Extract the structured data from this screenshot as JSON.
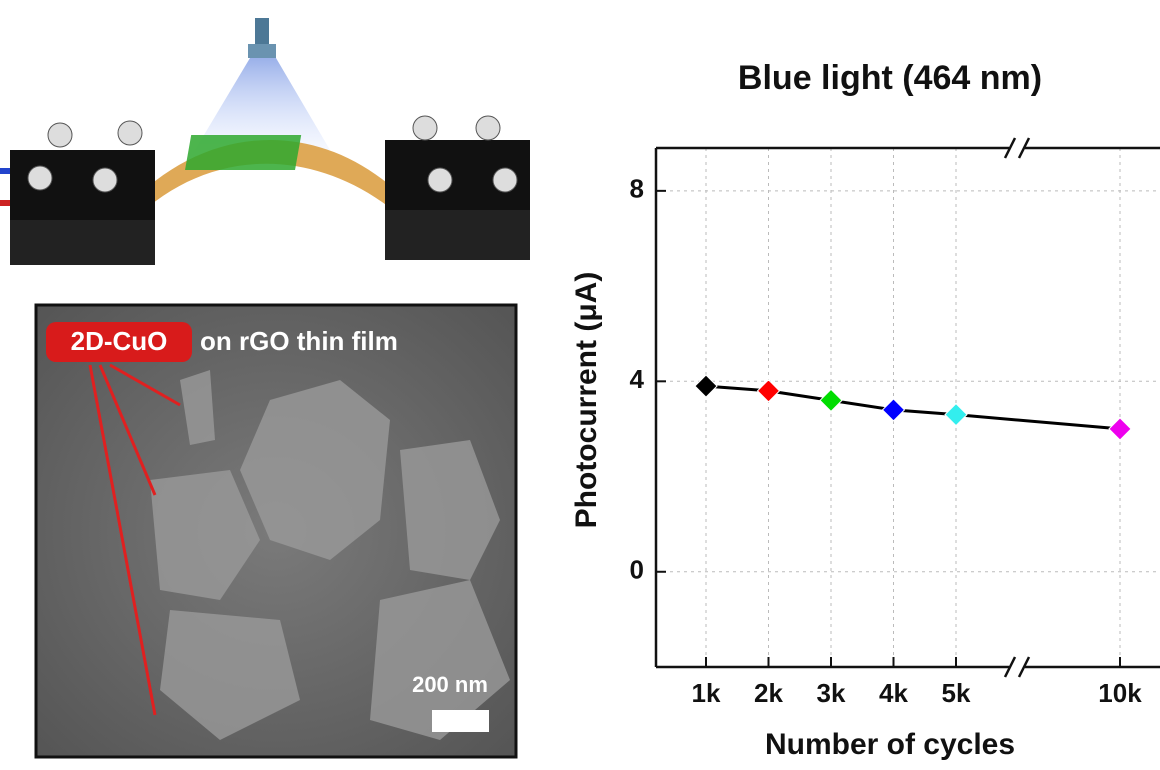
{
  "chart_data": {
    "type": "line",
    "title": "Blue light (464 nm)",
    "y_label": "Photocurrent (μA)",
    "x_label": "Number of cycles",
    "categories": [
      "1k",
      "2k",
      "3k",
      "4k",
      "5k",
      "10k"
    ],
    "values": [
      3.9,
      3.8,
      3.6,
      3.4,
      3.3,
      3.0
    ],
    "point_colors": [
      "#000000",
      "#ff0000",
      "#00dd00",
      "#0000ff",
      "#33eeee",
      "#ee00ee"
    ],
    "line_color": "#000000",
    "ylim": [
      -2,
      8.9
    ],
    "yticks": [
      0,
      4,
      8
    ],
    "grid": true
  },
  "sem_image": {
    "label_highlight": "2D-CuO",
    "label_rest": "on rGO thin film",
    "scale_bar": "200 nm"
  }
}
